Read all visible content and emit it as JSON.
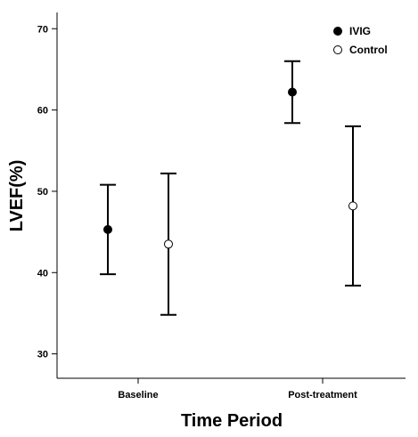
{
  "chart_data": {
    "type": "scatter",
    "xlabel": "Time Period",
    "ylabel": "LVEF(%)",
    "categories": [
      "Baseline",
      "Post-treatment"
    ],
    "ylim": [
      27,
      72
    ],
    "yticks": [
      30,
      40,
      50,
      60,
      70
    ],
    "legend_position": "top-right",
    "series": [
      {
        "name": "IVIG",
        "marker": "filled-circle",
        "color": "#000000",
        "points": [
          {
            "x": "Baseline",
            "y": 45.3,
            "low": 39.8,
            "high": 50.8
          },
          {
            "x": "Post-treatment",
            "y": 62.2,
            "low": 58.4,
            "high": 66.0
          }
        ]
      },
      {
        "name": "Control",
        "marker": "open-circle",
        "color": "#000000",
        "points": [
          {
            "x": "Baseline",
            "y": 43.5,
            "low": 34.8,
            "high": 52.2
          },
          {
            "x": "Post-treatment",
            "y": 48.2,
            "low": 38.4,
            "high": 58.0
          }
        ]
      }
    ]
  }
}
